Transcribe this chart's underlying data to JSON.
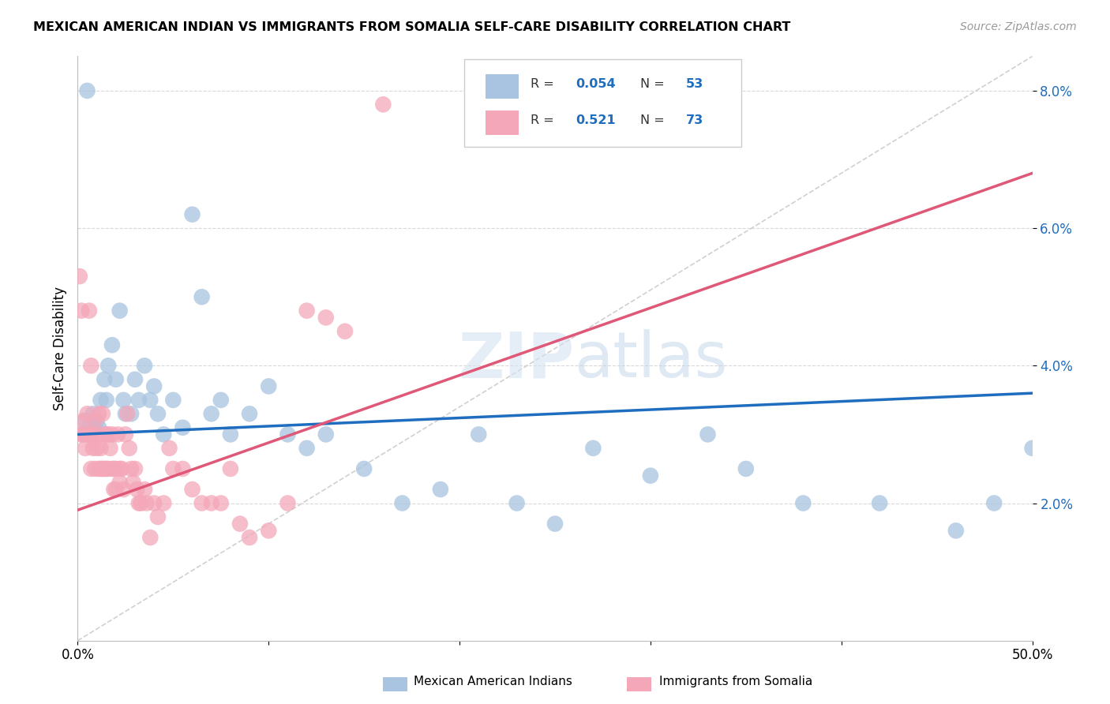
{
  "title": "MEXICAN AMERICAN INDIAN VS IMMIGRANTS FROM SOMALIA SELF-CARE DISABILITY CORRELATION CHART",
  "source": "Source: ZipAtlas.com",
  "ylabel": "Self-Care Disability",
  "xlim": [
    0.0,
    0.5
  ],
  "ylim": [
    0.0,
    0.085
  ],
  "ytick_vals": [
    0.02,
    0.04,
    0.06,
    0.08
  ],
  "ytick_labels": [
    "2.0%",
    "4.0%",
    "6.0%",
    "8.0%"
  ],
  "xtick_vals": [
    0.0,
    0.1,
    0.2,
    0.3,
    0.4,
    0.5
  ],
  "xtick_labels": [
    "0.0%",
    "",
    "",
    "",
    "",
    "50.0%"
  ],
  "r_blue": 0.054,
  "n_blue": 53,
  "r_pink": 0.521,
  "n_pink": 73,
  "color_blue": "#a8c4e0",
  "color_pink": "#f4a7b9",
  "line_color_blue": "#1f6dbf",
  "line_color_pink": "#e05878",
  "line_color_diag": "#d0d0d0",
  "blue_line_x": [
    0.0,
    0.5
  ],
  "blue_line_y": [
    0.03,
    0.036
  ],
  "pink_line_x": [
    0.0,
    0.5
  ],
  "pink_line_y": [
    0.019,
    0.068
  ],
  "diag_line_x": [
    0.0,
    0.5
  ],
  "diag_line_y": [
    0.0,
    0.085
  ],
  "blue_points_x": [
    0.005,
    0.003,
    0.004,
    0.006,
    0.007,
    0.008,
    0.009,
    0.01,
    0.011,
    0.012,
    0.014,
    0.015,
    0.016,
    0.018,
    0.02,
    0.022,
    0.024,
    0.025,
    0.028,
    0.03,
    0.032,
    0.035,
    0.038,
    0.04,
    0.042,
    0.045,
    0.05,
    0.055,
    0.06,
    0.065,
    0.07,
    0.075,
    0.08,
    0.09,
    0.1,
    0.11,
    0.12,
    0.13,
    0.15,
    0.17,
    0.19,
    0.21,
    0.23,
    0.25,
    0.27,
    0.3,
    0.33,
    0.35,
    0.38,
    0.42,
    0.46,
    0.48,
    0.5
  ],
  "blue_points_y": [
    0.08,
    0.03,
    0.032,
    0.031,
    0.03,
    0.033,
    0.031,
    0.032,
    0.031,
    0.035,
    0.038,
    0.035,
    0.04,
    0.043,
    0.038,
    0.048,
    0.035,
    0.033,
    0.033,
    0.038,
    0.035,
    0.04,
    0.035,
    0.037,
    0.033,
    0.03,
    0.035,
    0.031,
    0.062,
    0.05,
    0.033,
    0.035,
    0.03,
    0.033,
    0.037,
    0.03,
    0.028,
    0.03,
    0.025,
    0.02,
    0.022,
    0.03,
    0.02,
    0.017,
    0.028,
    0.024,
    0.03,
    0.025,
    0.02,
    0.02,
    0.016,
    0.02,
    0.028
  ],
  "pink_points_x": [
    0.001,
    0.002,
    0.002,
    0.003,
    0.003,
    0.004,
    0.005,
    0.005,
    0.006,
    0.006,
    0.007,
    0.007,
    0.008,
    0.008,
    0.009,
    0.009,
    0.01,
    0.01,
    0.011,
    0.011,
    0.012,
    0.012,
    0.013,
    0.013,
    0.014,
    0.014,
    0.015,
    0.015,
    0.016,
    0.016,
    0.017,
    0.018,
    0.018,
    0.019,
    0.019,
    0.02,
    0.02,
    0.021,
    0.022,
    0.022,
    0.023,
    0.024,
    0.025,
    0.026,
    0.027,
    0.028,
    0.029,
    0.03,
    0.031,
    0.032,
    0.033,
    0.035,
    0.036,
    0.038,
    0.04,
    0.042,
    0.045,
    0.048,
    0.05,
    0.055,
    0.06,
    0.065,
    0.07,
    0.075,
    0.08,
    0.085,
    0.09,
    0.1,
    0.11,
    0.12,
    0.13,
    0.14,
    0.16
  ],
  "pink_points_y": [
    0.053,
    0.03,
    0.048,
    0.032,
    0.03,
    0.028,
    0.033,
    0.03,
    0.048,
    0.03,
    0.04,
    0.025,
    0.028,
    0.03,
    0.032,
    0.025,
    0.03,
    0.028,
    0.033,
    0.025,
    0.028,
    0.025,
    0.033,
    0.025,
    0.03,
    0.025,
    0.03,
    0.025,
    0.03,
    0.025,
    0.028,
    0.03,
    0.025,
    0.025,
    0.022,
    0.025,
    0.022,
    0.03,
    0.025,
    0.023,
    0.025,
    0.022,
    0.03,
    0.033,
    0.028,
    0.025,
    0.023,
    0.025,
    0.022,
    0.02,
    0.02,
    0.022,
    0.02,
    0.015,
    0.02,
    0.018,
    0.02,
    0.028,
    0.025,
    0.025,
    0.022,
    0.02,
    0.02,
    0.02,
    0.025,
    0.017,
    0.015,
    0.016,
    0.02,
    0.048,
    0.047,
    0.045,
    0.078
  ]
}
